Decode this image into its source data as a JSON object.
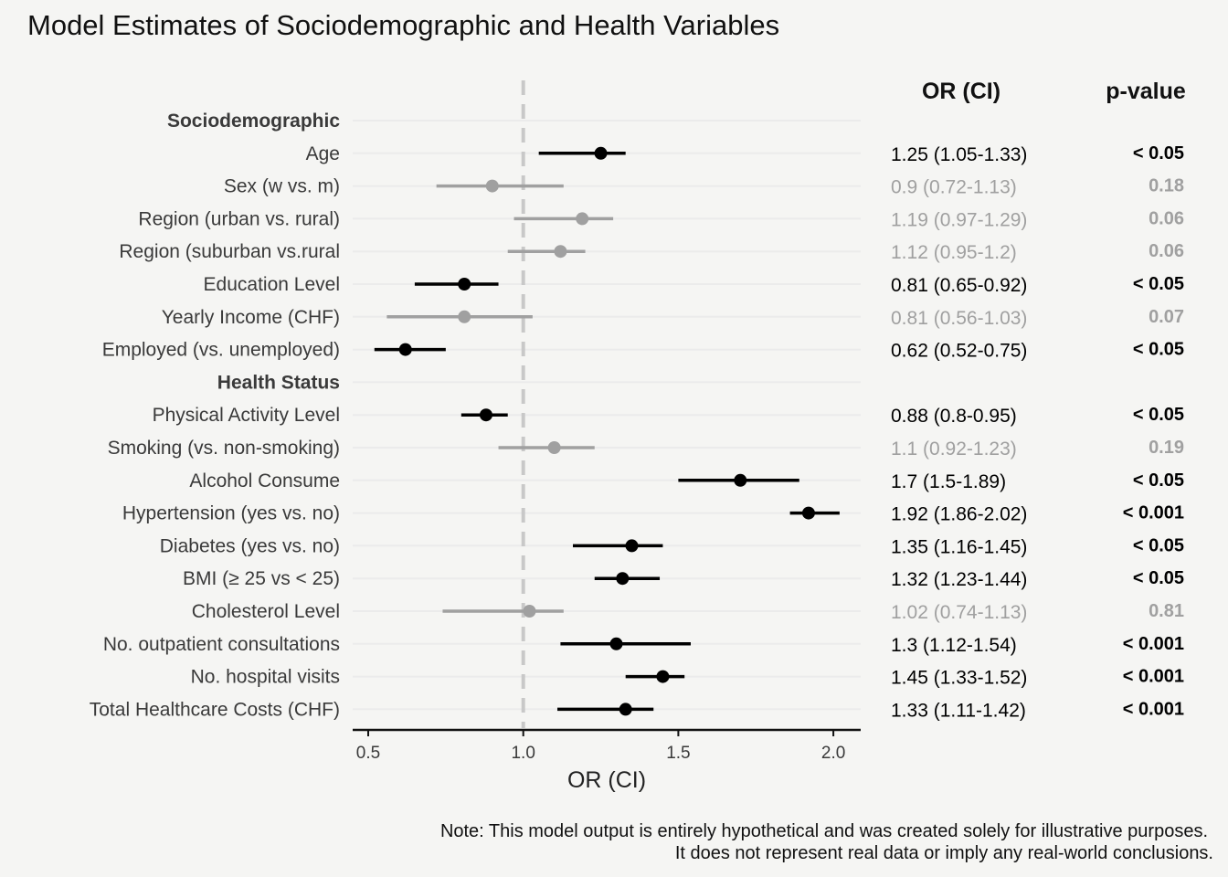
{
  "chart_data": {
    "type": "forest",
    "title": "Model Estimates of Sociodemographic and Health Variables",
    "xlabel": "OR (CI)",
    "xlim": [
      0.45,
      2.1
    ],
    "xticks": [
      "0.5",
      "1.0",
      "1.5",
      "2.0"
    ],
    "reference_line": 1.0,
    "col_headers": {
      "orci": "OR (CI)",
      "pvalue": "p-value"
    },
    "colors": {
      "significant": "#000000",
      "nonsignificant": "#a0a0a0",
      "reference": "#c8c8c8"
    },
    "rows": [
      {
        "type": "group",
        "label": "Sociodemographic"
      },
      {
        "type": "item",
        "label": "Age",
        "or": 1.25,
        "lo": 1.05,
        "hi": 1.33,
        "orci": "1.25 (1.05-1.33)",
        "p": "< 0.05",
        "sig": true
      },
      {
        "type": "item",
        "label": "Sex (w vs. m)",
        "or": 0.9,
        "lo": 0.72,
        "hi": 1.13,
        "orci": "0.9 (0.72-1.13)",
        "p": "0.18",
        "sig": false
      },
      {
        "type": "item",
        "label": "Region (urban vs. rural)",
        "or": 1.19,
        "lo": 0.97,
        "hi": 1.29,
        "orci": "1.19 (0.97-1.29)",
        "p": "0.06",
        "sig": false
      },
      {
        "type": "item",
        "label": "Region (suburban vs.rural",
        "or": 1.12,
        "lo": 0.95,
        "hi": 1.2,
        "orci": "1.12 (0.95-1.2)",
        "p": "0.06",
        "sig": false
      },
      {
        "type": "item",
        "label": "Education Level",
        "or": 0.81,
        "lo": 0.65,
        "hi": 0.92,
        "orci": "0.81 (0.65-0.92)",
        "p": "< 0.05",
        "sig": true
      },
      {
        "type": "item",
        "label": "Yearly Income (CHF)",
        "or": 0.81,
        "lo": 0.56,
        "hi": 1.03,
        "orci": "0.81 (0.56-1.03)",
        "p": "0.07",
        "sig": false
      },
      {
        "type": "item",
        "label": "Employed (vs. unemployed)",
        "or": 0.62,
        "lo": 0.52,
        "hi": 0.75,
        "orci": "0.62 (0.52-0.75)",
        "p": "< 0.05",
        "sig": true
      },
      {
        "type": "group",
        "label": "Health Status"
      },
      {
        "type": "item",
        "label": "Physical Activity Level",
        "or": 0.88,
        "lo": 0.8,
        "hi": 0.95,
        "orci": "0.88 (0.8-0.95)",
        "p": "< 0.05",
        "sig": true
      },
      {
        "type": "item",
        "label": "Smoking (vs. non-smoking)",
        "or": 1.1,
        "lo": 0.92,
        "hi": 1.23,
        "orci": "1.1 (0.92-1.23)",
        "p": "0.19",
        "sig": false
      },
      {
        "type": "item",
        "label": "Alcohol Consume",
        "or": 1.7,
        "lo": 1.5,
        "hi": 1.89,
        "orci": "1.7 (1.5-1.89)",
        "p": "< 0.05",
        "sig": true
      },
      {
        "type": "item",
        "label": "Hypertension (yes vs. no)",
        "or": 1.92,
        "lo": 1.86,
        "hi": 2.02,
        "orci": "1.92 (1.86-2.02)",
        "p": "< 0.001",
        "sig": true
      },
      {
        "type": "item",
        "label": "Diabetes (yes vs. no)",
        "or": 1.35,
        "lo": 1.16,
        "hi": 1.45,
        "orci": "1.35 (1.16-1.45)",
        "p": "< 0.05",
        "sig": true
      },
      {
        "type": "item",
        "label": "BMI (≥ 25 vs < 25)",
        "or": 1.32,
        "lo": 1.23,
        "hi": 1.44,
        "orci": "1.32 (1.23-1.44)",
        "p": "< 0.05",
        "sig": true
      },
      {
        "type": "item",
        "label": "Cholesterol Level",
        "or": 1.02,
        "lo": 0.74,
        "hi": 1.13,
        "orci": "1.02 (0.74-1.13)",
        "p": "0.81",
        "sig": false
      },
      {
        "type": "item",
        "label": "No. outpatient consultations",
        "or": 1.3,
        "lo": 1.12,
        "hi": 1.54,
        "orci": "1.3 (1.12-1.54)",
        "p": "< 0.001",
        "sig": true
      },
      {
        "type": "item",
        "label": "No. hospital visits",
        "or": 1.45,
        "lo": 1.33,
        "hi": 1.52,
        "orci": "1.45 (1.33-1.52)",
        "p": "< 0.001",
        "sig": true
      },
      {
        "type": "item",
        "label": "Total Healthcare Costs (CHF)",
        "or": 1.33,
        "lo": 1.11,
        "hi": 1.42,
        "orci": "1.33 (1.11-1.42)",
        "p": "< 0.001",
        "sig": true
      }
    ],
    "note": [
      "Note: This model output is entirely hypothetical and was created solely for illustrative purposes.",
      "It does not represent real data or imply any real-world conclusions."
    ]
  }
}
